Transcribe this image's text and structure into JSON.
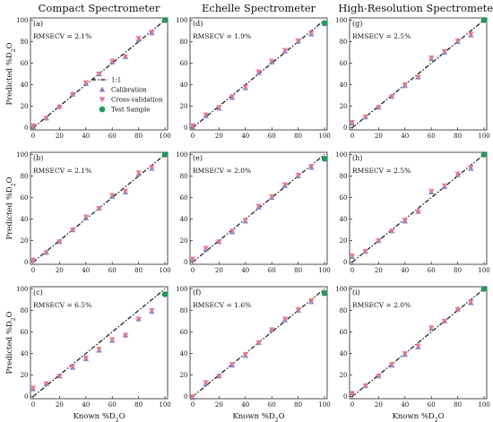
{
  "column_titles": [
    "Compact Spectrometer",
    "Echelle Spectrometer",
    "High-Resolution Spectrometer"
  ],
  "legend": {
    "one_to_one": "1:1",
    "calibration": "Calibration",
    "cross_validation": "Cross-validation",
    "test_sample": "Test Sample"
  },
  "colors": {
    "calibration": "#7b7fc4",
    "cross_validation": "#e9768e",
    "test_sample": "#1f9a5c",
    "one_to_one": "#111111"
  },
  "axis": {
    "xlabel_prefix": "Known %D",
    "xlabel_sub": "2",
    "xlabel_suffix": "O",
    "ylabel_prefix": "Predicted %D",
    "ylabel_sub": "2",
    "ylabel_suffix": "O",
    "ticks": [
      0,
      20,
      40,
      60,
      80,
      100
    ],
    "tick_labels": [
      "0",
      "20",
      "40",
      "60",
      "80",
      "100"
    ]
  },
  "chart_data": [
    {
      "type": "scatter",
      "label": "(a)",
      "rmsecv": "RMSECV = 2.1%",
      "xlim": [
        -2,
        102
      ],
      "ylim": [
        -2,
        102
      ],
      "x": [
        0,
        10,
        20,
        30,
        40,
        50,
        60,
        70,
        80,
        90
      ],
      "calibration": [
        1,
        9,
        20,
        31,
        41,
        50,
        61,
        66,
        82,
        88
      ],
      "cross_validation": [
        2,
        9,
        19,
        31,
        42,
        50,
        62,
        66,
        83,
        89
      ],
      "test_sample": {
        "x": 100,
        "y": 100
      }
    },
    {
      "type": "scatter",
      "label": "(d)",
      "rmsecv": "RMSECV = 1.9%",
      "xlim": [
        -2,
        102
      ],
      "ylim": [
        -2,
        102
      ],
      "x": [
        0,
        10,
        20,
        30,
        40,
        50,
        60,
        70,
        80,
        90
      ],
      "calibration": [
        1,
        11,
        18,
        28,
        37,
        51,
        61,
        71,
        80,
        87
      ],
      "cross_validation": [
        2,
        12,
        19,
        29,
        38,
        52,
        62,
        72,
        81,
        88
      ],
      "test_sample": {
        "x": 100,
        "y": 97
      }
    },
    {
      "type": "scatter",
      "label": "(g)",
      "rmsecv": "RMSECV = 2.5%",
      "xlim": [
        -2,
        102
      ],
      "ylim": [
        -2,
        102
      ],
      "x": [
        0,
        10,
        20,
        30,
        40,
        50,
        60,
        70,
        80,
        90
      ],
      "calibration": [
        4,
        10,
        19,
        29,
        39,
        47,
        64,
        70,
        80,
        86
      ],
      "cross_validation": [
        5,
        10,
        19,
        29,
        40,
        47,
        65,
        71,
        81,
        87
      ],
      "test_sample": {
        "x": 100,
        "y": 100
      }
    },
    {
      "type": "scatter",
      "label": "(b)",
      "rmsecv": "RMSECV = 2.1%",
      "xlim": [
        -2,
        102
      ],
      "ylim": [
        -2,
        102
      ],
      "x": [
        0,
        10,
        20,
        30,
        40,
        50,
        60,
        70,
        80,
        90
      ],
      "calibration": [
        2,
        9,
        19,
        30,
        41,
        50,
        61,
        65,
        82,
        87
      ],
      "cross_validation": [
        2,
        9,
        19,
        30,
        42,
        50,
        62,
        66,
        83,
        88
      ],
      "test_sample": {
        "x": 100,
        "y": 100
      }
    },
    {
      "type": "scatter",
      "label": "(e)",
      "rmsecv": "RMSECV = 2.0%",
      "xlim": [
        -2,
        102
      ],
      "ylim": [
        -2,
        102
      ],
      "x": [
        0,
        10,
        20,
        30,
        40,
        50,
        60,
        70,
        80,
        90
      ],
      "calibration": [
        2,
        12,
        19,
        28,
        38,
        51,
        60,
        71,
        80,
        88
      ],
      "cross_validation": [
        3,
        13,
        19,
        29,
        39,
        52,
        61,
        72,
        81,
        89
      ],
      "test_sample": {
        "x": 100,
        "y": 96
      }
    },
    {
      "type": "scatter",
      "label": "(h)",
      "rmsecv": "RMSECV = 2.5%",
      "xlim": [
        -2,
        102
      ],
      "ylim": [
        -2,
        102
      ],
      "x": [
        0,
        10,
        20,
        30,
        40,
        50,
        60,
        70,
        80,
        90
      ],
      "calibration": [
        5,
        10,
        20,
        29,
        38,
        47,
        65,
        70,
        81,
        87
      ],
      "cross_validation": [
        6,
        10,
        20,
        29,
        39,
        47,
        66,
        71,
        82,
        88
      ],
      "test_sample": {
        "x": 100,
        "y": 100
      }
    },
    {
      "type": "scatter",
      "label": "(c)",
      "rmsecv": "RMSECV = 6.5%",
      "xlim": [
        -2,
        102
      ],
      "ylim": [
        -2,
        102
      ],
      "x": [
        0,
        10,
        20,
        30,
        40,
        50,
        60,
        70,
        80,
        90
      ],
      "calibration": [
        7,
        12,
        19,
        27,
        35,
        43,
        52,
        57,
        72,
        79
      ],
      "cross_validation": [
        8,
        12,
        19,
        28,
        36,
        44,
        53,
        57,
        72,
        80
      ],
      "test_sample": {
        "x": 100,
        "y": 95
      }
    },
    {
      "type": "scatter",
      "label": "(f)",
      "rmsecv": "RMSECV = 1.6%",
      "xlim": [
        -2,
        102
      ],
      "ylim": [
        -2,
        102
      ],
      "x": [
        0,
        10,
        20,
        30,
        40,
        50,
        60,
        70,
        80,
        90
      ],
      "calibration": [
        -1,
        12,
        19,
        29,
        38,
        50,
        62,
        71,
        80,
        88
      ],
      "cross_validation": [
        0,
        13,
        19,
        30,
        39,
        50,
        62,
        72,
        81,
        89
      ],
      "test_sample": {
        "x": 100,
        "y": 96
      }
    },
    {
      "type": "scatter",
      "label": "(i)",
      "rmsecv": "RMSECV = 2.0%",
      "xlim": [
        -2,
        102
      ],
      "ylim": [
        -2,
        102
      ],
      "x": [
        0,
        10,
        20,
        30,
        40,
        50,
        60,
        70,
        80,
        90
      ],
      "calibration": [
        3,
        10,
        19,
        29,
        39,
        46,
        63,
        70,
        81,
        87
      ],
      "cross_validation": [
        3,
        10,
        19,
        30,
        40,
        47,
        64,
        70,
        81,
        88
      ],
      "test_sample": {
        "x": 100,
        "y": 100
      }
    }
  ]
}
